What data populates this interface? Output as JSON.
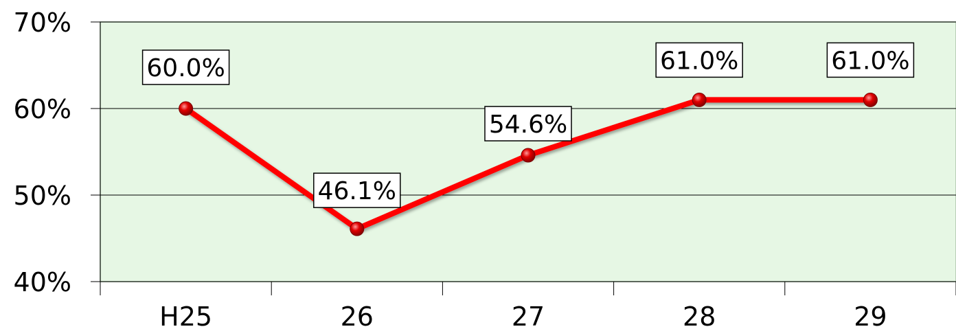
{
  "chart_data": {
    "type": "line",
    "categories": [
      "H25",
      "26",
      "27",
      "28",
      "29"
    ],
    "values": [
      60.0,
      46.1,
      54.6,
      61.0,
      61.0
    ],
    "data_labels": [
      "60.0%",
      "46.1%",
      "54.6%",
      "61.0%",
      "61.0%"
    ],
    "yticks": [
      "40%",
      "50%",
      "60%",
      "70%"
    ],
    "ytick_values": [
      40,
      50,
      60,
      70
    ],
    "ylim": [
      40,
      70
    ],
    "title": "",
    "xlabel": "",
    "ylabel": "",
    "grid": true,
    "legend": "none",
    "colors": {
      "line": "#ff0000",
      "marker": "#d40000",
      "plot_background": "#e6f7e4",
      "gridline": "#000000"
    }
  }
}
